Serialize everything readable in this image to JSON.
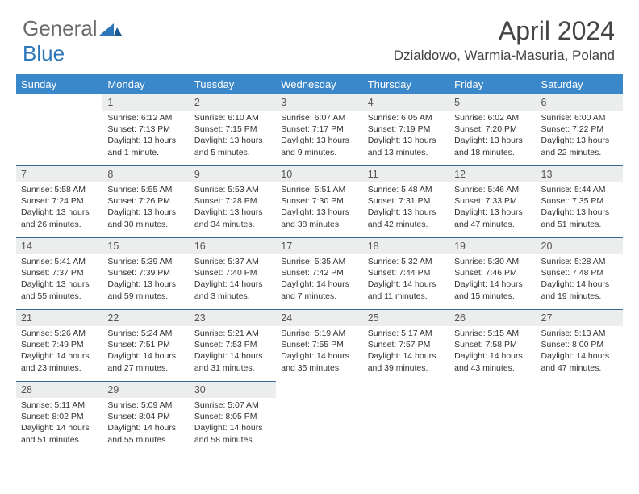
{
  "logo": {
    "general": "General",
    "blue": "Blue"
  },
  "title": "April 2024",
  "location": "Dzialdowo, Warmia-Masuria, Poland",
  "colors": {
    "header_bg": "#3a87c9",
    "header_text": "#ffffff",
    "daynum_bg": "#eceded",
    "row_border": "#3a6a95",
    "logo_general": "#6b6b6b",
    "logo_blue": "#2c76ba"
  },
  "weekdays": [
    "Sunday",
    "Monday",
    "Tuesday",
    "Wednesday",
    "Thursday",
    "Friday",
    "Saturday"
  ],
  "weeks": [
    [
      null,
      {
        "n": "1",
        "sr": "Sunrise: 6:12 AM",
        "ss": "Sunset: 7:13 PM",
        "d1": "Daylight: 13 hours",
        "d2": "and 1 minute."
      },
      {
        "n": "2",
        "sr": "Sunrise: 6:10 AM",
        "ss": "Sunset: 7:15 PM",
        "d1": "Daylight: 13 hours",
        "d2": "and 5 minutes."
      },
      {
        "n": "3",
        "sr": "Sunrise: 6:07 AM",
        "ss": "Sunset: 7:17 PM",
        "d1": "Daylight: 13 hours",
        "d2": "and 9 minutes."
      },
      {
        "n": "4",
        "sr": "Sunrise: 6:05 AM",
        "ss": "Sunset: 7:19 PM",
        "d1": "Daylight: 13 hours",
        "d2": "and 13 minutes."
      },
      {
        "n": "5",
        "sr": "Sunrise: 6:02 AM",
        "ss": "Sunset: 7:20 PM",
        "d1": "Daylight: 13 hours",
        "d2": "and 18 minutes."
      },
      {
        "n": "6",
        "sr": "Sunrise: 6:00 AM",
        "ss": "Sunset: 7:22 PM",
        "d1": "Daylight: 13 hours",
        "d2": "and 22 minutes."
      }
    ],
    [
      {
        "n": "7",
        "sr": "Sunrise: 5:58 AM",
        "ss": "Sunset: 7:24 PM",
        "d1": "Daylight: 13 hours",
        "d2": "and 26 minutes."
      },
      {
        "n": "8",
        "sr": "Sunrise: 5:55 AM",
        "ss": "Sunset: 7:26 PM",
        "d1": "Daylight: 13 hours",
        "d2": "and 30 minutes."
      },
      {
        "n": "9",
        "sr": "Sunrise: 5:53 AM",
        "ss": "Sunset: 7:28 PM",
        "d1": "Daylight: 13 hours",
        "d2": "and 34 minutes."
      },
      {
        "n": "10",
        "sr": "Sunrise: 5:51 AM",
        "ss": "Sunset: 7:30 PM",
        "d1": "Daylight: 13 hours",
        "d2": "and 38 minutes."
      },
      {
        "n": "11",
        "sr": "Sunrise: 5:48 AM",
        "ss": "Sunset: 7:31 PM",
        "d1": "Daylight: 13 hours",
        "d2": "and 42 minutes."
      },
      {
        "n": "12",
        "sr": "Sunrise: 5:46 AM",
        "ss": "Sunset: 7:33 PM",
        "d1": "Daylight: 13 hours",
        "d2": "and 47 minutes."
      },
      {
        "n": "13",
        "sr": "Sunrise: 5:44 AM",
        "ss": "Sunset: 7:35 PM",
        "d1": "Daylight: 13 hours",
        "d2": "and 51 minutes."
      }
    ],
    [
      {
        "n": "14",
        "sr": "Sunrise: 5:41 AM",
        "ss": "Sunset: 7:37 PM",
        "d1": "Daylight: 13 hours",
        "d2": "and 55 minutes."
      },
      {
        "n": "15",
        "sr": "Sunrise: 5:39 AM",
        "ss": "Sunset: 7:39 PM",
        "d1": "Daylight: 13 hours",
        "d2": "and 59 minutes."
      },
      {
        "n": "16",
        "sr": "Sunrise: 5:37 AM",
        "ss": "Sunset: 7:40 PM",
        "d1": "Daylight: 14 hours",
        "d2": "and 3 minutes."
      },
      {
        "n": "17",
        "sr": "Sunrise: 5:35 AM",
        "ss": "Sunset: 7:42 PM",
        "d1": "Daylight: 14 hours",
        "d2": "and 7 minutes."
      },
      {
        "n": "18",
        "sr": "Sunrise: 5:32 AM",
        "ss": "Sunset: 7:44 PM",
        "d1": "Daylight: 14 hours",
        "d2": "and 11 minutes."
      },
      {
        "n": "19",
        "sr": "Sunrise: 5:30 AM",
        "ss": "Sunset: 7:46 PM",
        "d1": "Daylight: 14 hours",
        "d2": "and 15 minutes."
      },
      {
        "n": "20",
        "sr": "Sunrise: 5:28 AM",
        "ss": "Sunset: 7:48 PM",
        "d1": "Daylight: 14 hours",
        "d2": "and 19 minutes."
      }
    ],
    [
      {
        "n": "21",
        "sr": "Sunrise: 5:26 AM",
        "ss": "Sunset: 7:49 PM",
        "d1": "Daylight: 14 hours",
        "d2": "and 23 minutes."
      },
      {
        "n": "22",
        "sr": "Sunrise: 5:24 AM",
        "ss": "Sunset: 7:51 PM",
        "d1": "Daylight: 14 hours",
        "d2": "and 27 minutes."
      },
      {
        "n": "23",
        "sr": "Sunrise: 5:21 AM",
        "ss": "Sunset: 7:53 PM",
        "d1": "Daylight: 14 hours",
        "d2": "and 31 minutes."
      },
      {
        "n": "24",
        "sr": "Sunrise: 5:19 AM",
        "ss": "Sunset: 7:55 PM",
        "d1": "Daylight: 14 hours",
        "d2": "and 35 minutes."
      },
      {
        "n": "25",
        "sr": "Sunrise: 5:17 AM",
        "ss": "Sunset: 7:57 PM",
        "d1": "Daylight: 14 hours",
        "d2": "and 39 minutes."
      },
      {
        "n": "26",
        "sr": "Sunrise: 5:15 AM",
        "ss": "Sunset: 7:58 PM",
        "d1": "Daylight: 14 hours",
        "d2": "and 43 minutes."
      },
      {
        "n": "27",
        "sr": "Sunrise: 5:13 AM",
        "ss": "Sunset: 8:00 PM",
        "d1": "Daylight: 14 hours",
        "d2": "and 47 minutes."
      }
    ],
    [
      {
        "n": "28",
        "sr": "Sunrise: 5:11 AM",
        "ss": "Sunset: 8:02 PM",
        "d1": "Daylight: 14 hours",
        "d2": "and 51 minutes."
      },
      {
        "n": "29",
        "sr": "Sunrise: 5:09 AM",
        "ss": "Sunset: 8:04 PM",
        "d1": "Daylight: 14 hours",
        "d2": "and 55 minutes."
      },
      {
        "n": "30",
        "sr": "Sunrise: 5:07 AM",
        "ss": "Sunset: 8:05 PM",
        "d1": "Daylight: 14 hours",
        "d2": "and 58 minutes."
      },
      null,
      null,
      null,
      null
    ]
  ]
}
